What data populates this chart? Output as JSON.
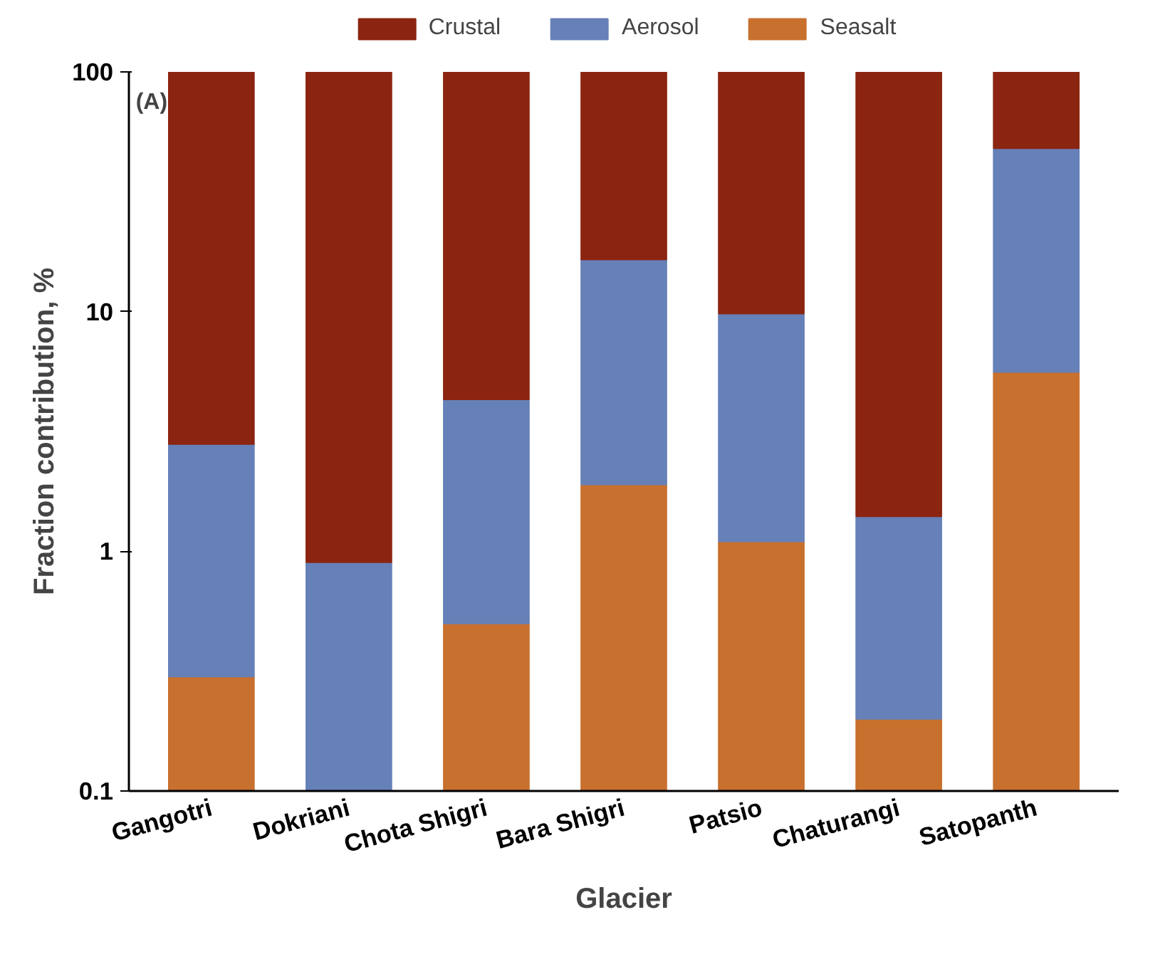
{
  "chart_data": {
    "type": "bar",
    "stacked": true,
    "log": "y",
    "xlabel": "Glacier",
    "ylabel": "Fraction contribution, %",
    "categories": [
      "Gangotri",
      "Dokriani",
      "Chota Shigri",
      "Bara Shigri",
      "Patsio",
      "Chaturangi",
      "Satopanth"
    ],
    "series": [
      {
        "name": "Seasalt",
        "color": "#c8702e",
        "values": [
          0.3,
          null,
          0.5,
          1.9,
          1.1,
          0.2,
          5.6
        ]
      },
      {
        "name": "Aerosol",
        "color": "#6680b8",
        "values": [
          2.5,
          0.9,
          3.8,
          14.6,
          8.7,
          1.2,
          42.4
        ]
      },
      {
        "name": "Crustal",
        "color": "#8b2511",
        "values": [
          97.2,
          99.1,
          95.7,
          83.5,
          90.2,
          98.6,
          52.0
        ]
      }
    ],
    "ylim": [
      0.1,
      100
    ],
    "yticks": [
      0.1,
      1,
      10,
      100
    ],
    "legend": "top",
    "annotations": [
      "(A)"
    ]
  }
}
